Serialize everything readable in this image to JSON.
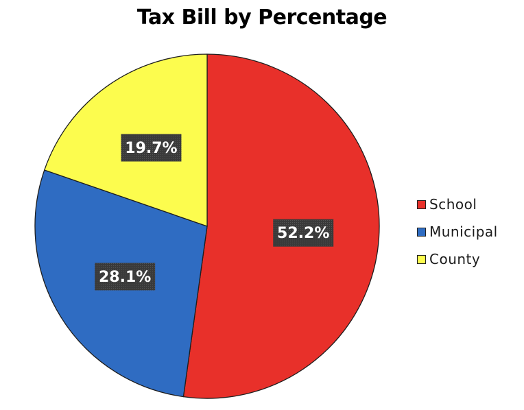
{
  "chart_data": {
    "type": "pie",
    "title": "Tax Bill by Percentage",
    "categories": [
      "School",
      "Municipal",
      "County"
    ],
    "values": [
      52.2,
      28.1,
      19.7
    ],
    "data_labels": [
      "52.2%",
      "28.1%",
      "19.7%"
    ],
    "colors": [
      "#e8302a",
      "#2f6cc2",
      "#fcfc4e"
    ],
    "start_angle": "12 o'clock",
    "direction": "clockwise",
    "legend": {
      "placement": "right",
      "entries": [
        "School",
        "Municipal",
        "County"
      ]
    }
  }
}
